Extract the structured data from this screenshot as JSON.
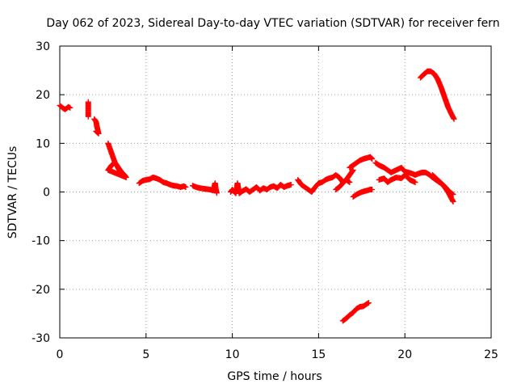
{
  "chart_data": {
    "type": "scatter",
    "title": "Day 062 of 2023, Sidereal Day-to-day VTEC variation (SDTVAR) for receiver fern",
    "xlabel": "GPS time / hours",
    "ylabel": "SDTVAR / TECUs",
    "xlim": [
      0,
      25
    ],
    "ylim": [
      -30,
      30
    ],
    "xticks": [
      0,
      5,
      10,
      15,
      20,
      25
    ],
    "yticks": [
      -30,
      -20,
      -10,
      0,
      10,
      20,
      30
    ],
    "xtick_labels": [
      "0",
      "5",
      "10",
      "15",
      "20",
      "25"
    ],
    "ytick_labels": [
      "-30",
      "-20",
      "-10",
      "0",
      "10",
      "20",
      "30"
    ],
    "grid": true,
    "marker": "+",
    "color": "#ff0000",
    "series": [
      {
        "name": "seg1",
        "x": [
          0.0,
          0.1,
          0.2,
          0.3,
          0.4,
          0.5,
          0.6
        ],
        "y": [
          17.8,
          17.5,
          17.2,
          17.0,
          17.2,
          17.5,
          17.3
        ]
      },
      {
        "name": "seg2",
        "x": [
          1.65,
          1.65,
          1.65,
          1.65
        ],
        "y": [
          18.5,
          17.5,
          16.5,
          15.5
        ]
      },
      {
        "name": "seg3",
        "x": [
          2.0,
          2.1,
          2.15,
          2.2,
          2.25,
          2.1
        ],
        "y": [
          15.0,
          14.5,
          13.5,
          12.8,
          12.0,
          12.5
        ]
      },
      {
        "name": "seg4",
        "x": [
          2.8,
          2.9,
          3.0,
          3.1,
          3.2,
          3.3,
          3.45,
          3.6,
          3.75,
          3.85,
          2.8,
          2.9,
          3.0,
          3.2,
          3.4,
          3.6
        ],
        "y": [
          10.0,
          9.0,
          8.0,
          7.0,
          6.0,
          5.5,
          4.5,
          4.0,
          3.5,
          3.0,
          4.5,
          5.0,
          5.5,
          6.0,
          5.0,
          4.0
        ]
      },
      {
        "name": "seg5",
        "x": [
          4.6,
          4.8,
          5.0,
          5.2,
          5.4,
          5.6,
          5.8,
          6.0,
          6.2,
          6.4,
          6.6,
          6.8,
          7.0,
          7.2,
          7.3
        ],
        "y": [
          1.8,
          2.3,
          2.5,
          2.6,
          3.0,
          2.8,
          2.5,
          2.0,
          1.8,
          1.5,
          1.3,
          1.2,
          1.0,
          1.2,
          1.0
        ]
      },
      {
        "name": "seg6",
        "x": [
          7.7,
          7.9,
          8.1,
          8.3,
          8.5,
          8.7,
          8.9,
          9.0,
          9.05,
          9.1
        ],
        "y": [
          1.3,
          1.0,
          0.8,
          0.7,
          0.6,
          0.5,
          0.3,
          1.8,
          0.5,
          -0.2
        ]
      },
      {
        "name": "seg7",
        "x": [
          9.9,
          10.0,
          10.2,
          10.3,
          10.4,
          10.6,
          10.8,
          11.0,
          11.2,
          11.4,
          11.6,
          11.8,
          12.0,
          12.2,
          12.4,
          12.6,
          12.8,
          13.0,
          13.2,
          13.4
        ],
        "y": [
          0.0,
          0.5,
          -0.3,
          1.8,
          -0.3,
          0.2,
          0.6,
          0.0,
          0.5,
          1.0,
          0.3,
          0.8,
          0.5,
          1.0,
          1.2,
          0.8,
          1.5,
          1.0,
          1.3,
          1.5
        ]
      },
      {
        "name": "seg8",
        "x": [
          13.8,
          14.0,
          14.2,
          14.4,
          14.6,
          14.8,
          15.0,
          15.2,
          15.4,
          15.6,
          15.8,
          16.0,
          16.2,
          16.4,
          16.6,
          16.8
        ],
        "y": [
          2.5,
          1.5,
          1.0,
          0.5,
          0.0,
          1.0,
          1.8,
          2.0,
          2.5,
          2.8,
          3.0,
          3.5,
          3.0,
          2.0,
          2.5,
          2.0
        ]
      },
      {
        "name": "seg9",
        "x": [
          16.8,
          17.0,
          17.2,
          17.4,
          17.6,
          17.8,
          18.0,
          18.1
        ],
        "y": [
          5.0,
          5.5,
          6.0,
          6.5,
          6.8,
          7.0,
          7.2,
          6.8
        ]
      },
      {
        "name": "seg10",
        "x": [
          16.0,
          16.2,
          16.4,
          16.6,
          16.8,
          17.0
        ],
        "y": [
          0.5,
          1.0,
          1.8,
          2.5,
          3.5,
          4.5
        ]
      },
      {
        "name": "seg11",
        "x": [
          17.0,
          17.2,
          17.5,
          17.8,
          18.0,
          18.1
        ],
        "y": [
          -1.0,
          -0.5,
          0.0,
          0.3,
          0.5,
          0.5
        ]
      },
      {
        "name": "seg12",
        "x": [
          18.3,
          18.5,
          18.8,
          19.0,
          19.2,
          19.5,
          19.8,
          20.0,
          20.2,
          20.4,
          20.6,
          20.8,
          21.0,
          21.2,
          21.4,
          21.6,
          21.8,
          22.0,
          22.2,
          22.4,
          22.6,
          22.8
        ],
        "y": [
          6.0,
          5.5,
          5.0,
          4.5,
          4.0,
          4.5,
          5.0,
          4.2,
          4.0,
          3.8,
          3.5,
          3.8,
          4.0,
          4.0,
          3.6,
          3.0,
          2.5,
          2.0,
          1.5,
          0.8,
          0.0,
          -0.5
        ]
      },
      {
        "name": "seg13",
        "x": [
          18.5,
          18.8,
          19.0,
          19.2,
          19.5,
          19.8,
          20.0,
          20.3,
          20.6
        ],
        "y": [
          2.5,
          2.8,
          2.0,
          2.5,
          3.0,
          2.8,
          3.5,
          2.5,
          2.0
        ]
      },
      {
        "name": "seg14",
        "x": [
          21.6,
          21.9,
          22.2,
          22.5,
          22.8
        ],
        "y": [
          3.5,
          2.5,
          1.5,
          0.0,
          -2.0
        ]
      },
      {
        "name": "seg15",
        "x": [
          20.9,
          21.1,
          21.3,
          21.5,
          21.7,
          21.9,
          22.1,
          22.3,
          22.5,
          22.7,
          22.85
        ],
        "y": [
          23.5,
          24.2,
          24.8,
          24.8,
          24.3,
          23.2,
          21.5,
          19.5,
          17.5,
          16.0,
          15.0
        ]
      },
      {
        "name": "seg16",
        "x": [
          16.4,
          16.6,
          16.8,
          17.0,
          17.2,
          17.4,
          17.6,
          17.8,
          17.9
        ],
        "y": [
          -26.5,
          -26.0,
          -25.3,
          -24.8,
          -24.0,
          -23.6,
          -23.5,
          -23.0,
          -22.8
        ]
      }
    ]
  }
}
